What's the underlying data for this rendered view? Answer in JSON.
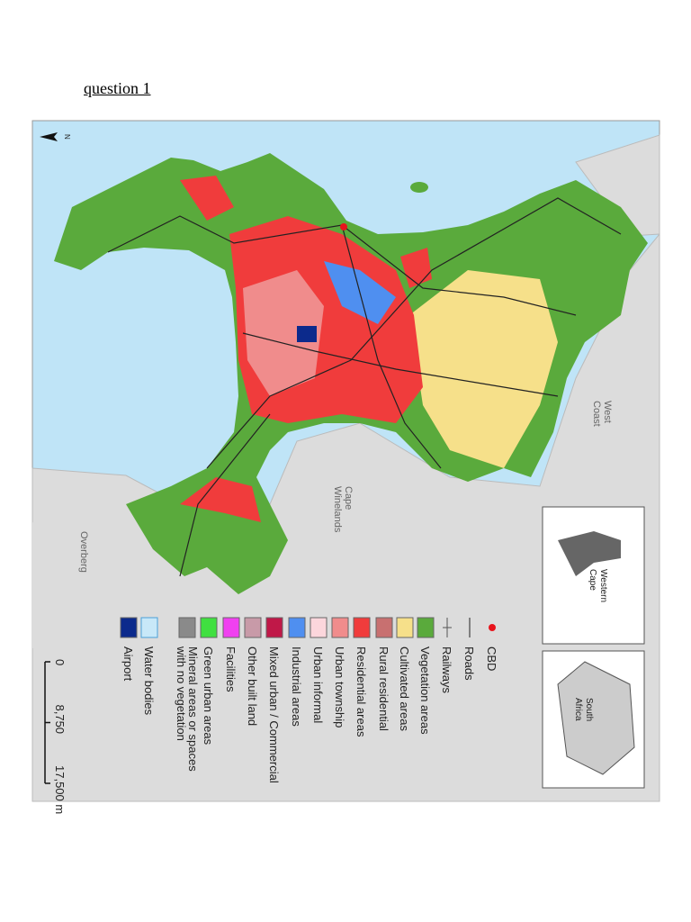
{
  "header": {
    "title": "question 1"
  },
  "map": {
    "north": "N",
    "place_labels": {
      "west_coast": [
        "West",
        "Coast"
      ],
      "cape_winelands": [
        "Cape",
        "Winelands"
      ],
      "overberg": [
        "Overberg"
      ]
    },
    "insets": [
      {
        "label": [
          "Western",
          "Cape"
        ]
      },
      {
        "label": [
          "South",
          "Africa"
        ]
      }
    ],
    "legend": [
      {
        "lines": [
          "CBD"
        ],
        "symbol": "dot",
        "color": "#e8141c"
      },
      {
        "lines": [
          "Roads"
        ],
        "symbol": "line",
        "color": "#222222"
      },
      {
        "lines": [
          "Railways"
        ],
        "symbol": "rail",
        "color": "#555555"
      },
      {
        "lines": [
          "Vegetation areas"
        ],
        "symbol": "box",
        "color": "#5aaa3c"
      },
      {
        "lines": [
          "Cultivated areas"
        ],
        "symbol": "box",
        "color": "#f6e08a"
      },
      {
        "lines": [
          "Rural residential"
        ],
        "symbol": "box",
        "color": "#c87070"
      },
      {
        "lines": [
          "Residential areas"
        ],
        "symbol": "box",
        "color": "#f03c3c"
      },
      {
        "lines": [
          "Urban township"
        ],
        "symbol": "box",
        "color": "#f08c8c"
      },
      {
        "lines": [
          "Urban informal"
        ],
        "symbol": "box",
        "color": "#fcd6dc"
      },
      {
        "lines": [
          "Industrial areas"
        ],
        "symbol": "box",
        "color": "#4f8ff0"
      },
      {
        "lines": [
          "Mixed urban / Commercial"
        ],
        "symbol": "box",
        "color": "#c01848"
      },
      {
        "lines": [
          "Other built land"
        ],
        "symbol": "box",
        "color": "#c89aa8"
      },
      {
        "lines": [
          "Facilities"
        ],
        "symbol": "box",
        "color": "#f040f0"
      },
      {
        "lines": [
          "Green urban areas"
        ],
        "symbol": "box",
        "color": "#40e040"
      },
      {
        "lines": [
          "Mineral areas or spaces",
          "with no vegetation"
        ],
        "symbol": "box",
        "color": "#8a8a8a"
      },
      {
        "lines": [
          "Water bodies"
        ],
        "symbol": "box",
        "color": "#c8e8f8"
      },
      {
        "lines": [
          "Airport"
        ],
        "symbol": "box",
        "color": "#0c2a8c"
      }
    ],
    "scale": {
      "ticks": [
        0,
        {
          "value": 8750,
          "label": "8,750"
        },
        {
          "value": 17500,
          "label": "17,500 m"
        }
      ]
    }
  }
}
